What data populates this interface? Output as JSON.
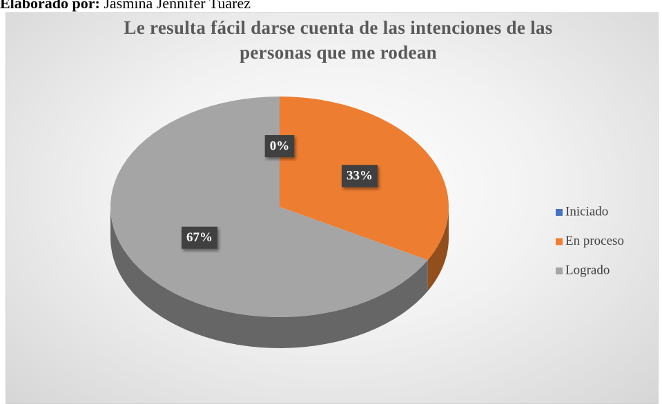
{
  "caption": {
    "label": "Elaborado por:",
    "text": "Jasmina Jennifer Tuarez"
  },
  "chart_data": {
    "type": "pie",
    "title": "Le resulta fácil darse cuenta de las intenciones de las personas que me rodean",
    "categories": [
      "Iniciado",
      "En proceso",
      "Logrado"
    ],
    "values": [
      0,
      33,
      67
    ],
    "value_labels": [
      "0%",
      "33%",
      "67%"
    ],
    "colors": [
      "#4472c4",
      "#ed7d31",
      "#a5a5a5"
    ],
    "legend": "right"
  }
}
